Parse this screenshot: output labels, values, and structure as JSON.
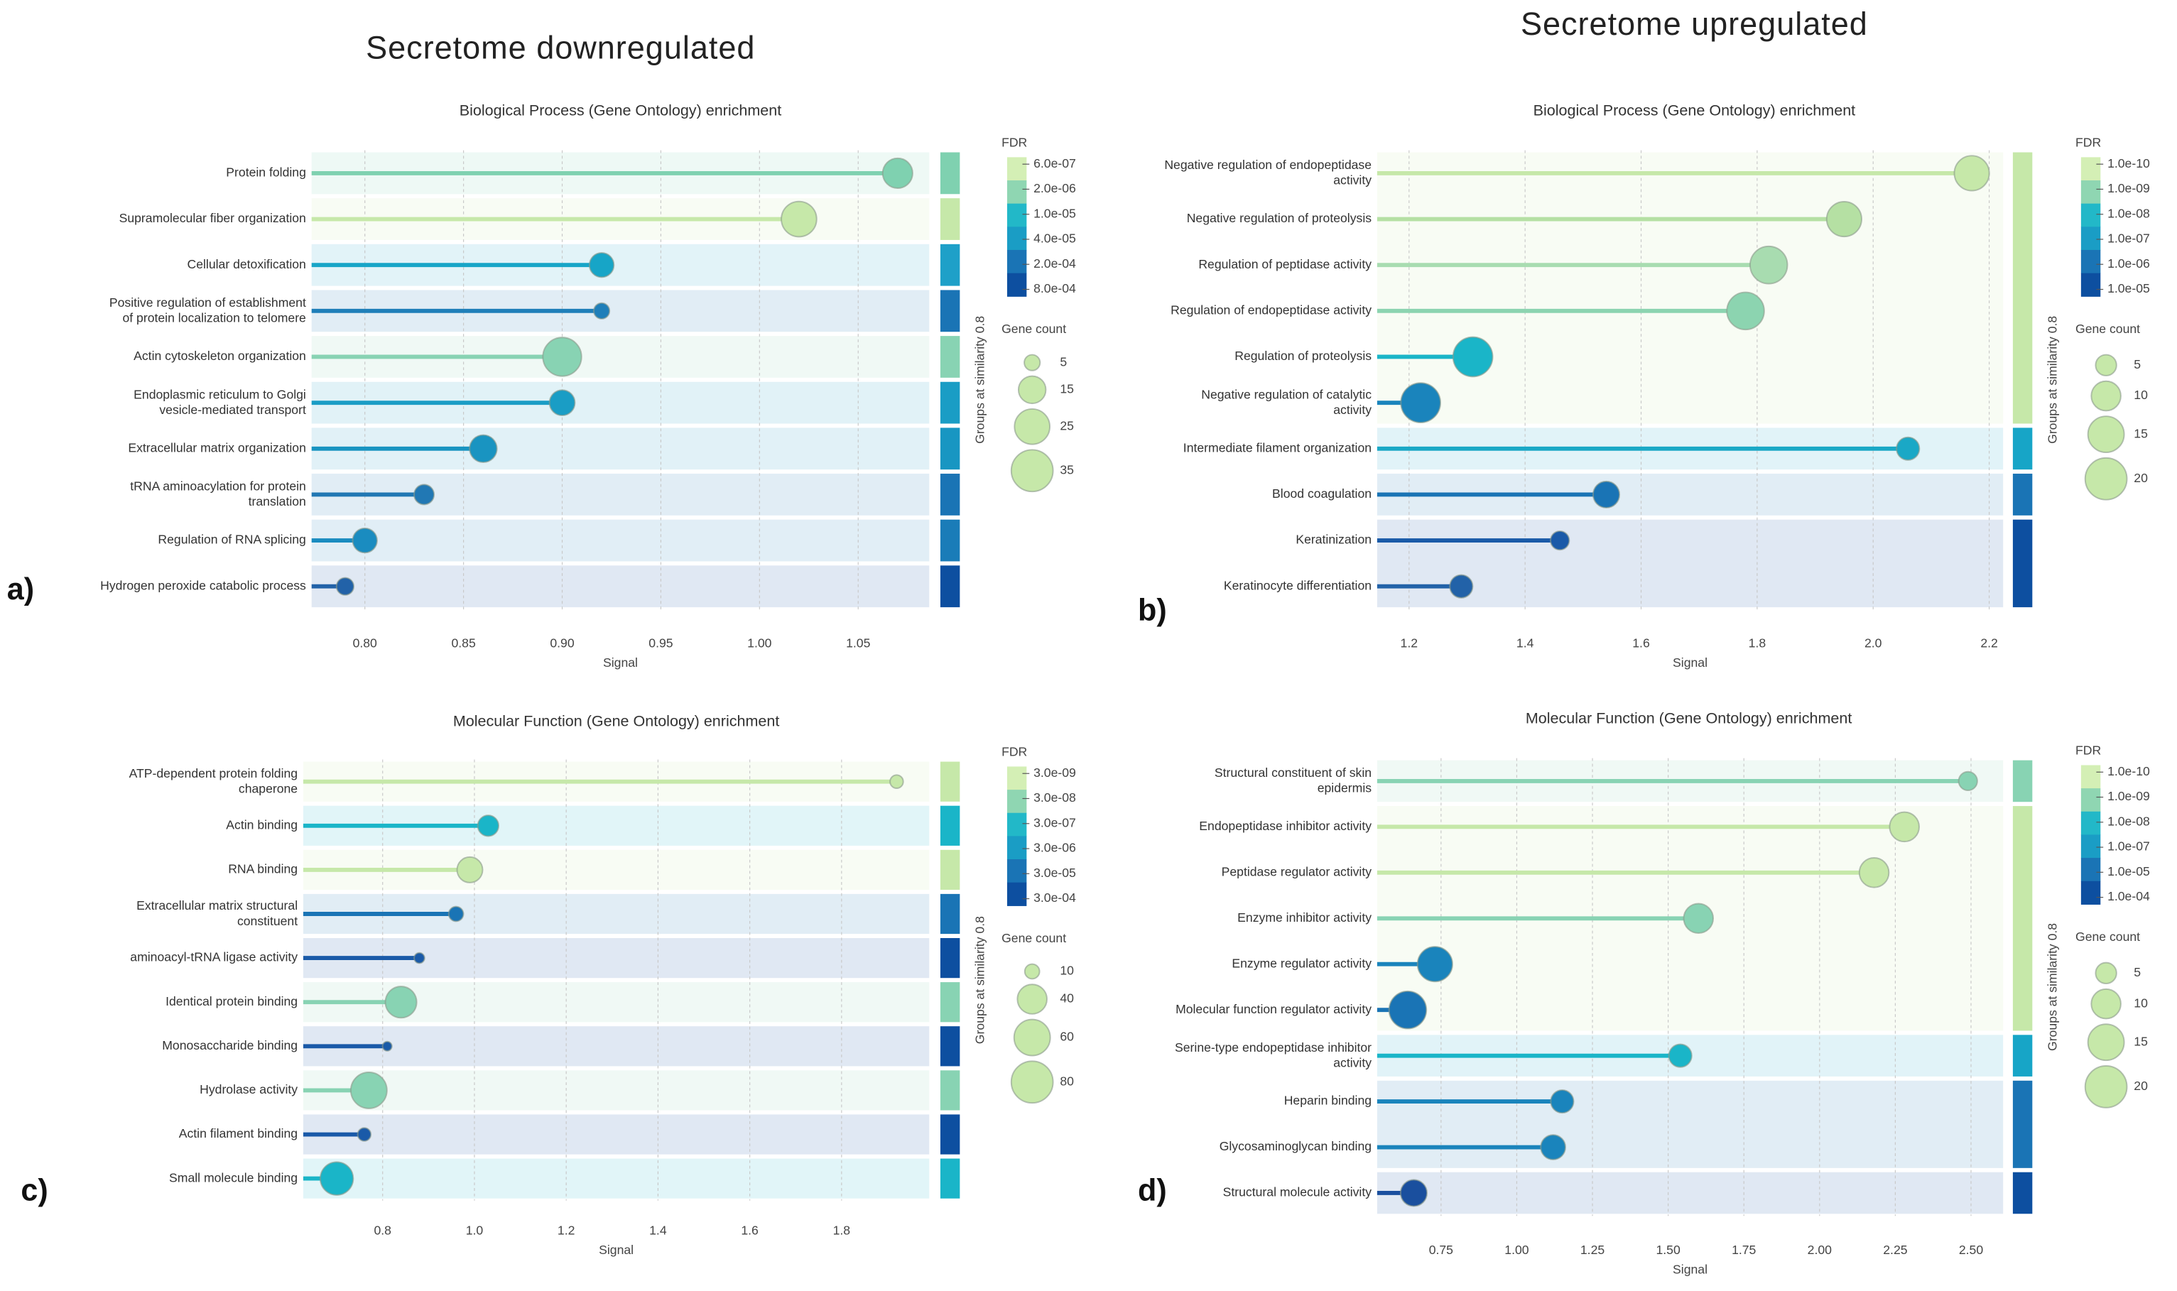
{
  "headings": [
    "Secretome downregulated",
    "Secretome upregulated"
  ],
  "chart_data": [
    {
      "type": "lollipop",
      "label": "a)",
      "title": "Biological Process (Gene Ontology) enrichment",
      "x_label": "Signal",
      "categories": [
        "Protein folding",
        "Supramolecular fiber organization",
        "Cellular detoxification",
        "Positive regulation of establishment\nof protein localization to telomere",
        "Actin cytoskeleton organization",
        "Endoplasmic reticulum to Golgi\nvesicle-mediated transport",
        "Extracellular matrix organization",
        "tRNA aminoacylation for protein\ntranslation",
        "Regulation of RNA splicing",
        "Hydrogen peroxide catabolic process"
      ],
      "values": [
        1.07,
        1.02,
        0.92,
        0.92,
        0.9,
        0.9,
        0.86,
        0.83,
        0.8,
        0.79
      ],
      "gene_counts": [
        18,
        25,
        12,
        5,
        30,
        13,
        15,
        8,
        12,
        6
      ],
      "colors": [
        "#7fd1b0",
        "#c6e8a9",
        "#17a5c7",
        "#1f7fb9",
        "#88d3b3",
        "#1a9dc5",
        "#1994c1",
        "#2178b4",
        "#1a8cc0",
        "#2262a8"
      ],
      "group_colors": [
        "#7fd1b0",
        "#c6e8a9",
        "#1ea0c8",
        "#1a74b5",
        "#88d3b3",
        "#1a9dc5",
        "#1896c2",
        "#1a74b5",
        "#1a7cb8",
        "#0d4fa0"
      ],
      "group_label": "Groups at similarity 0.8",
      "xlim": [
        0.773,
        1.086
      ],
      "xticks": [
        {
          "value": 0.8,
          "label": "0.80"
        },
        0.85,
        {
          "value": 0.9,
          "label": "0.90"
        },
        0.95,
        {
          "value": 1,
          "label": "1.00"
        },
        1.05
      ],
      "grid": true,
      "fdr_title": "FDR",
      "fdr_ticks": [
        {
          "value": 6e-07,
          "label": "6.0e-07"
        },
        {
          "value": 2e-06,
          "label": "2.0e-06"
        },
        {
          "value": 1e-05,
          "label": "1.0e-05"
        },
        {
          "value": 4e-05,
          "label": "4.0e-05"
        },
        {
          "value": 0.0002,
          "label": "2.0e-04"
        },
        {
          "value": 0.0008,
          "label": "8.0e-04"
        }
      ],
      "fdr_colors": [
        "#d4efb5",
        "#8fd6b2",
        "#22b8c8",
        "#1a9dc5",
        "#1a74b5",
        "#0d4fa0"
      ],
      "size_title": "Gene count",
      "size_ticks": [
        5,
        15,
        25,
        35
      ]
    },
    {
      "type": "lollipop",
      "label": "b)",
      "title": "Biological Process (Gene Ontology) enrichment",
      "x_label": "Signal",
      "categories": [
        "Negative regulation of endopeptidase\nactivity",
        "Negative regulation of proteolysis",
        "Regulation of peptidase activity",
        "Regulation of endopeptidase activity",
        "Regulation of proteolysis",
        "Negative regulation of catalytic\nactivity",
        "Intermediate filament organization",
        "Blood coagulation",
        "Keratinization",
        "Keratinocyte differentiation"
      ],
      "values": [
        2.17,
        1.95,
        1.82,
        1.78,
        1.31,
        1.22,
        2.06,
        1.54,
        1.46,
        1.29
      ],
      "gene_counts": [
        14,
        14,
        16,
        16,
        18,
        18,
        6,
        8,
        4,
        6
      ],
      "colors": [
        "#c6e8a9",
        "#b5e0a3",
        "#a8dcb0",
        "#8cd4b0",
        "#1ab5c8",
        "#1a84bc",
        "#1aa8c6",
        "#1a74b5",
        "#1a5aa8",
        "#2262a8"
      ],
      "group_colors": [
        "#c6e8a9",
        "#c6e8a9",
        "#c6e8a9",
        "#c6e8a9",
        "#c6e8a9",
        "#c6e8a9",
        "#17a5c7",
        "#1a74b5",
        "#0d4fa0",
        "#0d4fa0"
      ],
      "group_label": "Groups at similarity 0.8",
      "xlim": [
        1.145,
        2.224
      ],
      "xticks": [
        1.2,
        1.4,
        1.6,
        1.8,
        {
          "value": 2,
          "label": "2.0"
        },
        2.2
      ],
      "grid": true,
      "fdr_title": "FDR",
      "fdr_ticks": [
        {
          "value": 1e-10,
          "label": "1.0e-10"
        },
        {
          "value": 1e-09,
          "label": "1.0e-09"
        },
        {
          "value": 1e-08,
          "label": "1.0e-08"
        },
        {
          "value": 1e-07,
          "label": "1.0e-07"
        },
        {
          "value": 1e-06,
          "label": "1.0e-06"
        },
        {
          "value": 1e-05,
          "label": "1.0e-05"
        }
      ],
      "fdr_colors": [
        "#d4efb5",
        "#8fd6b2",
        "#22b8c8",
        "#1a9dc5",
        "#1a74b5",
        "#0d4fa0"
      ],
      "size_title": "Gene count",
      "size_ticks": [
        5,
        10,
        15,
        20
      ]
    },
    {
      "type": "lollipop",
      "label": "c)",
      "title": "Molecular Function (Gene Ontology) enrichment",
      "x_label": "Signal",
      "categories": [
        "ATP-dependent protein folding\nchaperone",
        "Actin binding",
        "RNA binding",
        "Extracellular matrix structural\nconstituent",
        "aminoacyl-tRNA ligase activity",
        "Identical protein binding",
        "Monosaccharide binding",
        "Hydrolase activity",
        "Actin filament binding",
        "Small molecule binding"
      ],
      "values": [
        1.92,
        1.03,
        0.99,
        0.96,
        0.88,
        0.84,
        0.81,
        0.77,
        0.76,
        0.7
      ],
      "gene_counts": [
        8,
        20,
        30,
        10,
        5,
        45,
        4,
        60,
        8,
        50
      ],
      "colors": [
        "#c6e8a9",
        "#1ab5c8",
        "#c6e8a9",
        "#1a74b5",
        "#1a5aa8",
        "#88d3b3",
        "#1a5aa8",
        "#88d3b3",
        "#1a5aa8",
        "#1ab5c8"
      ],
      "group_colors": [
        "#c6e8a9",
        "#1ab5c8",
        "#c6e8a9",
        "#1a74b5",
        "#0d4fa0",
        "#88d3b3",
        "#0d4fa0",
        "#88d3b3",
        "#0d4fa0",
        "#1ab5c8"
      ],
      "group_label": "Groups at similarity 0.8",
      "xlim": [
        0.627,
        1.991
      ],
      "xticks": [
        0.8,
        {
          "value": 1,
          "label": "1.0"
        },
        1.2,
        1.4,
        1.6,
        1.8
      ],
      "grid": true,
      "fdr_title": "FDR",
      "fdr_ticks": [
        {
          "value": 3e-09,
          "label": "3.0e-09"
        },
        {
          "value": 3e-08,
          "label": "3.0e-08"
        },
        {
          "value": 3e-07,
          "label": "3.0e-07"
        },
        {
          "value": 3e-06,
          "label": "3.0e-06"
        },
        {
          "value": 3e-05,
          "label": "3.0e-05"
        },
        {
          "value": 0.0003,
          "label": "3.0e-04"
        }
      ],
      "fdr_colors": [
        "#d4efb5",
        "#8fd6b2",
        "#22b8c8",
        "#1a9dc5",
        "#1a74b5",
        "#0d4fa0"
      ],
      "size_title": "Gene count",
      "size_ticks": [
        10,
        40,
        60,
        80
      ]
    },
    {
      "type": "lollipop",
      "label": "d)",
      "title": "Molecular Function (Gene Ontology) enrichment",
      "x_label": "Signal",
      "categories": [
        "Structural constituent of skin\nepidermis",
        "Endopeptidase inhibitor activity",
        "Peptidase regulator activity",
        "Enzyme inhibitor activity",
        "Enzyme regulator activity",
        "Molecular function regulator activity",
        "Serine-type endopeptidase inhibitor\nactivity",
        "Heparin binding",
        "Glycosaminoglycan binding",
        "Structural molecule activity"
      ],
      "values": [
        2.49,
        2.28,
        2.18,
        1.6,
        0.73,
        0.64,
        1.54,
        1.15,
        1.12,
        0.66
      ],
      "gene_counts": [
        4,
        10,
        10,
        10,
        14,
        16,
        6,
        6,
        7,
        8
      ],
      "colors": [
        "#88d3b3",
        "#c6e8a9",
        "#c6e8a9",
        "#88d3b3",
        "#1a84bc",
        "#1a74b5",
        "#1ab5c8",
        "#1a84bc",
        "#1a84bc",
        "#1a4f9e"
      ],
      "group_colors": [
        "#88d3b3",
        "#c6e8a9",
        "#c6e8a9",
        "#c6e8a9",
        "#c6e8a9",
        "#c6e8a9",
        "#17a5c7",
        "#1a74b5",
        "#1a74b5",
        "#0d4fa0"
      ],
      "group_label": "Groups at similarity 0.8",
      "xlim": [
        0.539,
        2.606
      ],
      "xticks": [
        0.75,
        {
          "value": 1,
          "label": "1.00"
        },
        1.25,
        {
          "value": 1.5,
          "label": "1.50"
        },
        1.75,
        {
          "value": 2,
          "label": "2.00"
        },
        2.25,
        {
          "value": 2.5,
          "label": "2.50"
        }
      ],
      "grid": true,
      "fdr_title": "FDR",
      "fdr_ticks": [
        {
          "value": 1e-10,
          "label": "1.0e-10"
        },
        {
          "value": 1e-09,
          "label": "1.0e-09"
        },
        {
          "value": 1e-08,
          "label": "1.0e-08"
        },
        {
          "value": 1e-07,
          "label": "1.0e-07"
        },
        {
          "value": 1e-05,
          "label": "1.0e-05"
        },
        {
          "value": 0.0001,
          "label": "1.0e-04"
        }
      ],
      "fdr_colors": [
        "#d4efb5",
        "#8fd6b2",
        "#22b8c8",
        "#1a9dc5",
        "#1a74b5",
        "#0d4fa0"
      ],
      "size_title": "Gene count",
      "size_ticks": [
        5,
        10,
        15,
        20
      ]
    }
  ]
}
